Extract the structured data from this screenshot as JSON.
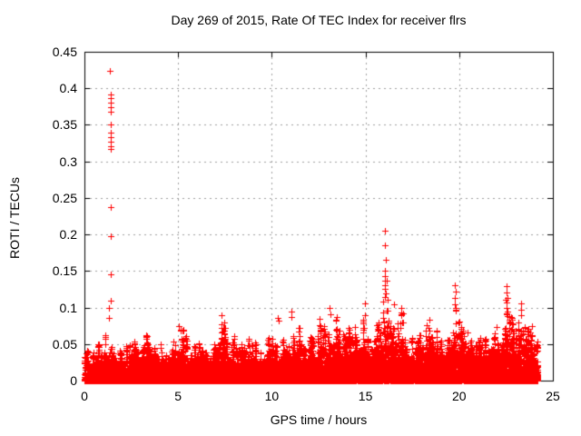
{
  "chart_data": {
    "type": "scatter",
    "title": "Day 269 of 2015, Rate Of TEC Index for receiver flrs",
    "xlabel": "GPS time / hours",
    "ylabel": "ROTI / TECUs",
    "xlim": [
      0,
      25
    ],
    "ylim": [
      0,
      0.45
    ],
    "xticks": [
      0,
      5,
      10,
      15,
      20,
      25
    ],
    "xtick_labels": [
      "0",
      "5",
      "10",
      "15",
      "20",
      "25"
    ],
    "yticks": [
      0,
      0.05,
      0.1,
      0.15,
      0.2,
      0.25,
      0.3,
      0.35,
      0.4,
      0.45
    ],
    "ytick_labels": [
      "0",
      "0.05",
      "0.1",
      "0.15",
      "0.2",
      "0.25",
      "0.3",
      "0.35",
      "0.4",
      "0.45"
    ],
    "grid": true,
    "legend": "none",
    "marker": "plus",
    "marker_color": "#ff0000",
    "grid_color": "#a0a0a0",
    "axis_color": "#000000",
    "background_color": "#ffffff",
    "data_extent_hours": [
      0,
      24.2
    ],
    "noise_band": {
      "description": "dense ROTI noise floor; envelope max per 0.5 h bin, solid core near 0-0.03 TECU",
      "start_hour": 0,
      "bin_width_hours": 0.5,
      "points_per_hour": 600,
      "envelope_max": [
        0.042,
        0.052,
        0.068,
        0.048,
        0.052,
        0.058,
        0.063,
        0.048,
        0.053,
        0.058,
        0.072,
        0.048,
        0.053,
        0.058,
        0.088,
        0.062,
        0.053,
        0.058,
        0.053,
        0.058,
        0.063,
        0.058,
        0.075,
        0.055,
        0.065,
        0.08,
        0.092,
        0.07,
        0.075,
        0.09,
        0.065,
        0.112,
        0.14,
        0.1,
        0.06,
        0.065,
        0.085,
        0.07,
        0.06,
        0.1,
        0.08,
        0.055,
        0.06,
        0.065,
        0.075,
        0.115,
        0.09,
        0.075,
        0.055
      ]
    },
    "outliers": [
      [
        1.38,
        0.424
      ],
      [
        1.4,
        0.392
      ],
      [
        1.41,
        0.386
      ],
      [
        1.39,
        0.38
      ],
      [
        1.4,
        0.374
      ],
      [
        1.41,
        0.368
      ],
      [
        1.4,
        0.351
      ],
      [
        1.39,
        0.339
      ],
      [
        1.41,
        0.333
      ],
      [
        1.4,
        0.327
      ],
      [
        1.42,
        0.321
      ],
      [
        1.4,
        0.317
      ],
      [
        1.4,
        0.237
      ],
      [
        1.4,
        0.198
      ],
      [
        1.4,
        0.145
      ],
      [
        1.39,
        0.11
      ],
      [
        1.3,
        0.1
      ],
      [
        1.32,
        0.086
      ],
      [
        5.05,
        0.075
      ],
      [
        7.3,
        0.09
      ],
      [
        10.33,
        0.086
      ],
      [
        10.36,
        0.082
      ],
      [
        11.05,
        0.095
      ],
      [
        11.06,
        0.087
      ],
      [
        12.55,
        0.085
      ],
      [
        13.1,
        0.1
      ],
      [
        13.11,
        0.091
      ],
      [
        14.95,
        0.106
      ],
      [
        14.96,
        0.09
      ],
      [
        16.05,
        0.205
      ],
      [
        16.05,
        0.185
      ],
      [
        16.07,
        0.165
      ],
      [
        16.05,
        0.15
      ],
      [
        16.06,
        0.143
      ],
      [
        16.04,
        0.137
      ],
      [
        16.06,
        0.131
      ],
      [
        16.05,
        0.125
      ],
      [
        16.07,
        0.119
      ],
      [
        16.04,
        0.114
      ],
      [
        16.5,
        0.105
      ],
      [
        19.78,
        0.131
      ],
      [
        19.8,
        0.122
      ],
      [
        19.79,
        0.113
      ],
      [
        19.78,
        0.105
      ],
      [
        19.8,
        0.097
      ],
      [
        22.54,
        0.129
      ],
      [
        22.55,
        0.12
      ],
      [
        22.56,
        0.113
      ],
      [
        22.54,
        0.107
      ],
      [
        22.55,
        0.1
      ],
      [
        22.56,
        0.094
      ],
      [
        23.3,
        0.106
      ],
      [
        23.31,
        0.097
      ],
      [
        23.29,
        0.09
      ],
      [
        23.88,
        0.075
      ]
    ]
  }
}
